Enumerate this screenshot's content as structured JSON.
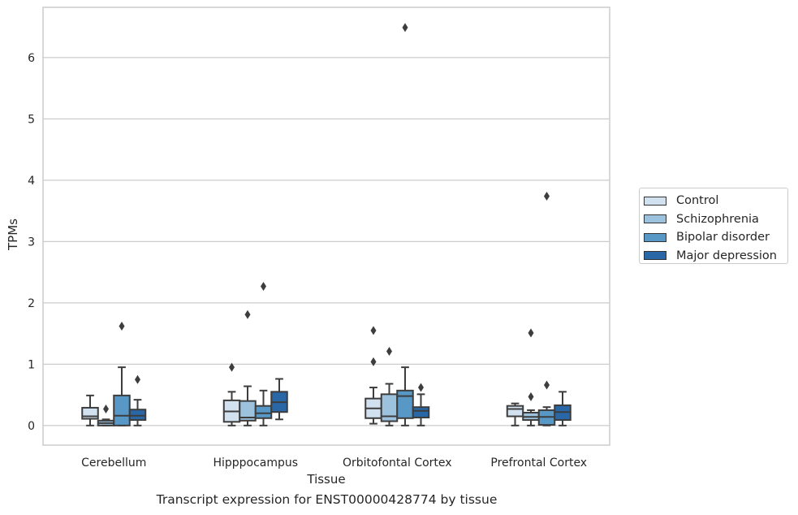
{
  "chart_data": {
    "type": "box",
    "title": "",
    "caption": "Transcript expression for ENST00000428774 by tissue",
    "xlabel": "Tissue",
    "ylabel": "TPMs",
    "ylim": [
      -0.32,
      6.82
    ],
    "yticks": [
      "0",
      "1",
      "2",
      "3",
      "4",
      "5",
      "6"
    ],
    "grid": "horizontal",
    "legend_position": "right",
    "categories": [
      "Cerebellum",
      "Hipppocampus",
      "Orbitofontal Cortex",
      "Prefrontal Cortex"
    ],
    "series": [
      {
        "name": "Control",
        "color": "#d2e1f0",
        "boxes": [
          {
            "low": 0.0,
            "q1": 0.11,
            "median": 0.15,
            "q3": 0.29,
            "high": 0.49,
            "outliers": []
          },
          {
            "low": 0.0,
            "q1": 0.06,
            "median": 0.23,
            "q3": 0.41,
            "high": 0.55,
            "outliers": [
              0.95
            ]
          },
          {
            "low": 0.03,
            "q1": 0.12,
            "median": 0.28,
            "q3": 0.44,
            "high": 0.62,
            "outliers": [
              1.04,
              1.55
            ]
          },
          {
            "low": 0.0,
            "q1": 0.15,
            "median": 0.27,
            "q3": 0.32,
            "high": 0.36,
            "outliers": []
          }
        ]
      },
      {
        "name": "Schizophrenia",
        "color": "#9cc2dd",
        "boxes": [
          {
            "low": 0.0,
            "q1": 0.0,
            "median": 0.04,
            "q3": 0.08,
            "high": 0.1,
            "outliers": [
              0.27
            ]
          },
          {
            "low": 0.0,
            "q1": 0.08,
            "median": 0.13,
            "q3": 0.4,
            "high": 0.64,
            "outliers": [
              1.81
            ]
          },
          {
            "low": 0.0,
            "q1": 0.07,
            "median": 0.15,
            "q3": 0.51,
            "high": 0.68,
            "outliers": [
              1.21
            ]
          },
          {
            "low": 0.0,
            "q1": 0.09,
            "median": 0.14,
            "q3": 0.21,
            "high": 0.25,
            "outliers": [
              0.47,
              1.51
            ]
          }
        ]
      },
      {
        "name": "Bipolar disorder",
        "color": "#5898c6",
        "boxes": [
          {
            "low": 0.0,
            "q1": 0.0,
            "median": 0.16,
            "q3": 0.49,
            "high": 0.95,
            "outliers": [
              1.62
            ]
          },
          {
            "low": 0.0,
            "q1": 0.12,
            "median": 0.2,
            "q3": 0.32,
            "high": 0.57,
            "outliers": [
              2.27
            ]
          },
          {
            "low": 0.0,
            "q1": 0.12,
            "median": 0.48,
            "q3": 0.57,
            "high": 0.95,
            "outliers": [
              6.49
            ]
          },
          {
            "low": 0.0,
            "q1": 0.01,
            "median": 0.14,
            "q3": 0.25,
            "high": 0.3,
            "outliers": [
              0.66,
              3.74
            ]
          }
        ]
      },
      {
        "name": "Major depression",
        "color": "#2a67a6",
        "boxes": [
          {
            "low": 0.0,
            "q1": 0.09,
            "median": 0.16,
            "q3": 0.26,
            "high": 0.42,
            "outliers": [
              0.75
            ]
          },
          {
            "low": 0.1,
            "q1": 0.22,
            "median": 0.38,
            "q3": 0.55,
            "high": 0.76,
            "outliers": []
          },
          {
            "low": 0.0,
            "q1": 0.13,
            "median": 0.24,
            "q3": 0.3,
            "high": 0.51,
            "outliers": [
              0.62
            ]
          },
          {
            "low": 0.0,
            "q1": 0.09,
            "median": 0.22,
            "q3": 0.33,
            "high": 0.55,
            "outliers": []
          }
        ]
      }
    ]
  }
}
